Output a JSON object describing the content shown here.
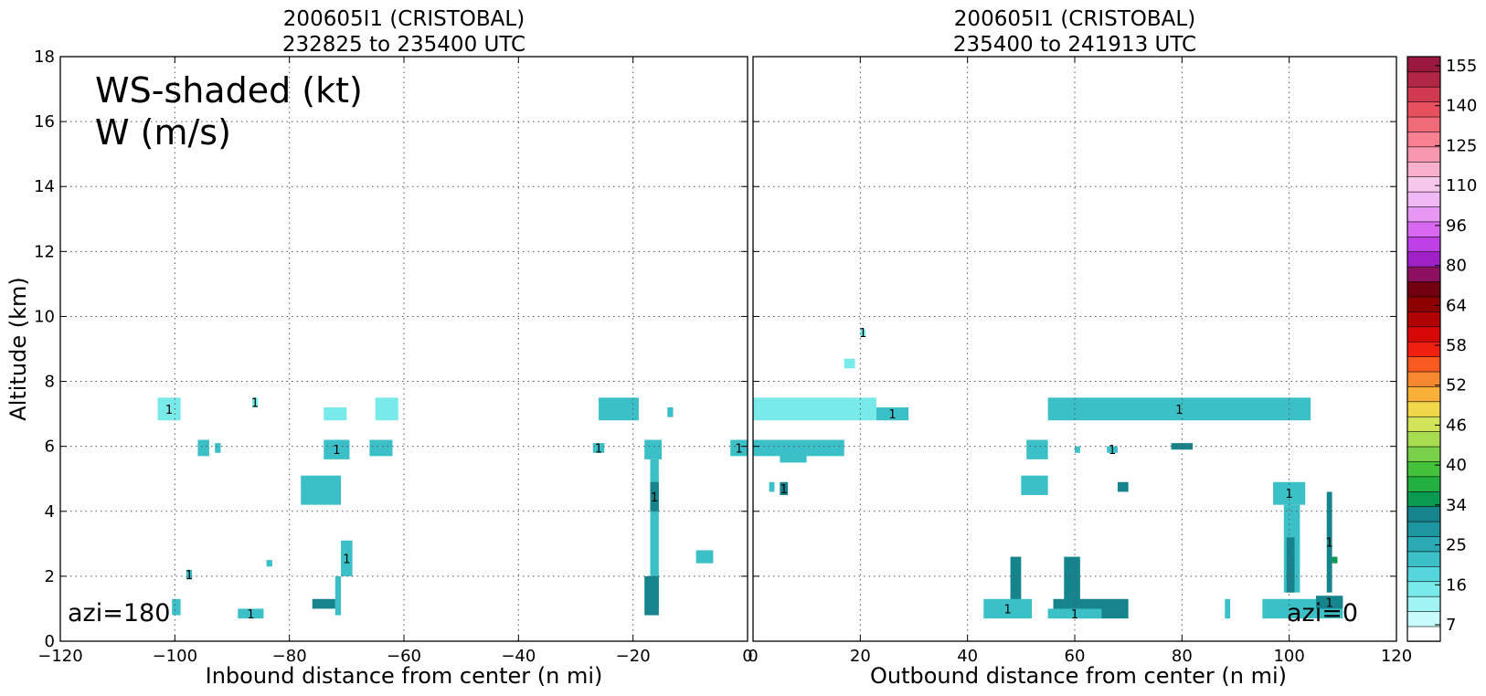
{
  "chart_data": [
    {
      "type": "heatmap",
      "title_line1": "200605I1 (CRISTOBAL)",
      "title_line2": "232825 to 235400 UTC",
      "xlabel": "Inbound distance from center (n mi)",
      "ylabel": "Altitude (km)",
      "xlim": [
        -120,
        0
      ],
      "ylim": [
        0,
        18
      ],
      "xticks": [
        "−120",
        "−100",
        "−80",
        "−60",
        "−40",
        "−20",
        "0"
      ],
      "yticks": [
        "0",
        "2",
        "4",
        "6",
        "8",
        "10",
        "12",
        "14",
        "16",
        "18"
      ],
      "grid": true,
      "annotation_ws": "WS-shaded (kt)",
      "annotation_w": "W (m/s)",
      "azimuth_label": "azi=180",
      "contour_label": "1",
      "patches": [
        {
          "x0": -103,
          "x1": -99,
          "y0": 6.8,
          "y1": 7.5,
          "level": 16
        },
        {
          "x0": -96,
          "x1": -94,
          "y0": 5.7,
          "y1": 6.2,
          "level": 25
        },
        {
          "x0": -93,
          "x1": -92,
          "y0": 5.8,
          "y1": 6.1,
          "level": 22
        },
        {
          "x0": -86.5,
          "x1": -85.5,
          "y0": 7.2,
          "y1": 7.5,
          "level": 16
        },
        {
          "x0": -74,
          "x1": -70,
          "y0": 6.8,
          "y1": 7.2,
          "level": 16
        },
        {
          "x0": -65,
          "x1": -61,
          "y0": 6.8,
          "y1": 7.5,
          "level": 16
        },
        {
          "x0": -74,
          "x1": -69.5,
          "y0": 5.6,
          "y1": 6.2,
          "level": 25
        },
        {
          "x0": -66,
          "x1": -62,
          "y0": 5.7,
          "y1": 6.2,
          "level": 25
        },
        {
          "x0": -78,
          "x1": -71,
          "y0": 4.2,
          "y1": 5.1,
          "level": 25
        },
        {
          "x0": -71,
          "x1": -69,
          "y0": 2.0,
          "y1": 3.1,
          "level": 25
        },
        {
          "x0": -72,
          "x1": -71,
          "y0": 0.8,
          "y1": 2.0,
          "level": 25
        },
        {
          "x0": -76,
          "x1": -72,
          "y0": 1.0,
          "y1": 1.3,
          "level": 34
        },
        {
          "x0": -98,
          "x1": -97,
          "y0": 1.9,
          "y1": 2.2,
          "level": 25
        },
        {
          "x0": -84,
          "x1": -83,
          "y0": 2.3,
          "y1": 2.5,
          "level": 25
        },
        {
          "x0": -100.5,
          "x1": -99,
          "y0": 0.8,
          "y1": 1.3,
          "level": 25
        },
        {
          "x0": -89,
          "x1": -84.5,
          "y0": 0.7,
          "y1": 1.0,
          "level": 22
        },
        {
          "x0": -26,
          "x1": -19,
          "y0": 6.8,
          "y1": 7.5,
          "level": 22
        },
        {
          "x0": -14,
          "x1": -13,
          "y0": 6.9,
          "y1": 7.2,
          "level": 25
        },
        {
          "x0": -27,
          "x1": -25,
          "y0": 5.8,
          "y1": 6.1,
          "level": 25
        },
        {
          "x0": -18,
          "x1": -15,
          "y0": 5.6,
          "y1": 6.2,
          "level": 25
        },
        {
          "x0": -17,
          "x1": -15.5,
          "y0": 1.0,
          "y1": 5.6,
          "level": 25
        },
        {
          "x0": -17,
          "x1": -15.5,
          "y0": 4.0,
          "y1": 4.9,
          "level": 34
        },
        {
          "x0": -18,
          "x1": -15.5,
          "y0": 0.8,
          "y1": 2.0,
          "level": 34
        },
        {
          "x0": -9,
          "x1": -6,
          "y0": 2.4,
          "y1": 2.8,
          "level": 25
        },
        {
          "x0": -3,
          "x1": 0,
          "y0": 5.7,
          "y1": 6.2,
          "level": 25
        }
      ]
    },
    {
      "type": "heatmap",
      "title_line1": "200605I1 (CRISTOBAL)",
      "title_line2": "235400 to 241913 UTC",
      "xlabel": "Outbound distance from center (n mi)",
      "xlim": [
        0,
        120
      ],
      "ylim": [
        0,
        18
      ],
      "xticks": [
        "0",
        "20",
        "40",
        "60",
        "80",
        "100",
        "120"
      ],
      "grid": true,
      "azimuth_label": "azi=0",
      "contour_label": "1",
      "patches": [
        {
          "x0": 20,
          "x1": 21,
          "y0": 9.4,
          "y1": 9.6,
          "level": 16
        },
        {
          "x0": 17,
          "x1": 19,
          "y0": 8.4,
          "y1": 8.7,
          "level": 16
        },
        {
          "x0": 0,
          "x1": 23,
          "y0": 6.8,
          "y1": 7.5,
          "level": 16
        },
        {
          "x0": 23,
          "x1": 29,
          "y0": 6.8,
          "y1": 7.2,
          "level": 22
        },
        {
          "x0": 0,
          "x1": 17,
          "y0": 5.7,
          "y1": 6.2,
          "level": 25
        },
        {
          "x0": 5,
          "x1": 10,
          "y0": 5.5,
          "y1": 5.8,
          "level": 25
        },
        {
          "x0": 55,
          "x1": 104,
          "y0": 6.8,
          "y1": 7.5,
          "level": 25
        },
        {
          "x0": 51,
          "x1": 55,
          "y0": 5.6,
          "y1": 6.2,
          "level": 25
        },
        {
          "x0": 60,
          "x1": 61,
          "y0": 5.8,
          "y1": 6.0,
          "level": 25
        },
        {
          "x0": 66,
          "x1": 68,
          "y0": 5.8,
          "y1": 6.0,
          "level": 25
        },
        {
          "x0": 78,
          "x1": 82,
          "y0": 5.9,
          "y1": 6.1,
          "level": 34
        },
        {
          "x0": 3,
          "x1": 4,
          "y0": 4.6,
          "y1": 4.9,
          "level": 25
        },
        {
          "x0": 5,
          "x1": 6.5,
          "y0": 4.5,
          "y1": 4.9,
          "level": 34
        },
        {
          "x0": 50,
          "x1": 55,
          "y0": 4.5,
          "y1": 5.1,
          "level": 25
        },
        {
          "x0": 68,
          "x1": 70,
          "y0": 4.6,
          "y1": 4.9,
          "level": 34
        },
        {
          "x0": 97,
          "x1": 103,
          "y0": 4.2,
          "y1": 4.9,
          "level": 25
        },
        {
          "x0": 99,
          "x1": 102,
          "y0": 1.5,
          "y1": 4.2,
          "level": 25
        },
        {
          "x0": 99.5,
          "x1": 101,
          "y0": 1.5,
          "y1": 3.2,
          "level": 37
        },
        {
          "x0": 107,
          "x1": 108,
          "y0": 1.5,
          "y1": 4.6,
          "level": 34
        },
        {
          "x0": 108,
          "x1": 109,
          "y0": 2.4,
          "y1": 2.6,
          "level": 40
        },
        {
          "x0": 48,
          "x1": 50,
          "y0": 1.0,
          "y1": 2.6,
          "level": 34
        },
        {
          "x0": 43,
          "x1": 52,
          "y0": 0.7,
          "y1": 1.3,
          "level": 25
        },
        {
          "x0": 58,
          "x1": 61,
          "y0": 1.0,
          "y1": 2.6,
          "level": 37
        },
        {
          "x0": 56,
          "x1": 70,
          "y0": 0.7,
          "y1": 1.3,
          "level": 34
        },
        {
          "x0": 55,
          "x1": 65,
          "y0": 0.7,
          "y1": 1.0,
          "level": 25
        },
        {
          "x0": 88,
          "x1": 89,
          "y0": 0.7,
          "y1": 1.3,
          "level": 25
        },
        {
          "x0": 95,
          "x1": 110,
          "y0": 0.7,
          "y1": 1.3,
          "level": 25
        },
        {
          "x0": 105,
          "x1": 110,
          "y0": 1.0,
          "y1": 1.4,
          "level": 34
        }
      ]
    }
  ],
  "colorbar": {
    "labels": [
      "155",
      "140",
      "125",
      "110",
      "96",
      "80",
      "64",
      "58",
      "52",
      "46",
      "40",
      "34",
      "25",
      "16",
      "7"
    ],
    "colors": [
      "#ffffff",
      "#c8fcfc",
      "#a0f4f4",
      "#78eaea",
      "#55d6dc",
      "#3cc0c8",
      "#2aaab4",
      "#1e96a0",
      "#16848c",
      "#0a9a50",
      "#22b040",
      "#44c23c",
      "#78d048",
      "#a8dc50",
      "#d2e45a",
      "#f0d84a",
      "#f8b038",
      "#f88830",
      "#f85a20",
      "#f02010",
      "#d80808",
      "#b00404",
      "#8c0000",
      "#70000e",
      "#8c1060",
      "#a020c8",
      "#c040e8",
      "#d868f0",
      "#e898f4",
      "#f0b8f4",
      "#f8c8ec",
      "#f8b0cc",
      "#f898b0",
      "#f88090",
      "#f06a78",
      "#e85060",
      "#d03a50",
      "#b02644",
      "#981840"
    ]
  }
}
